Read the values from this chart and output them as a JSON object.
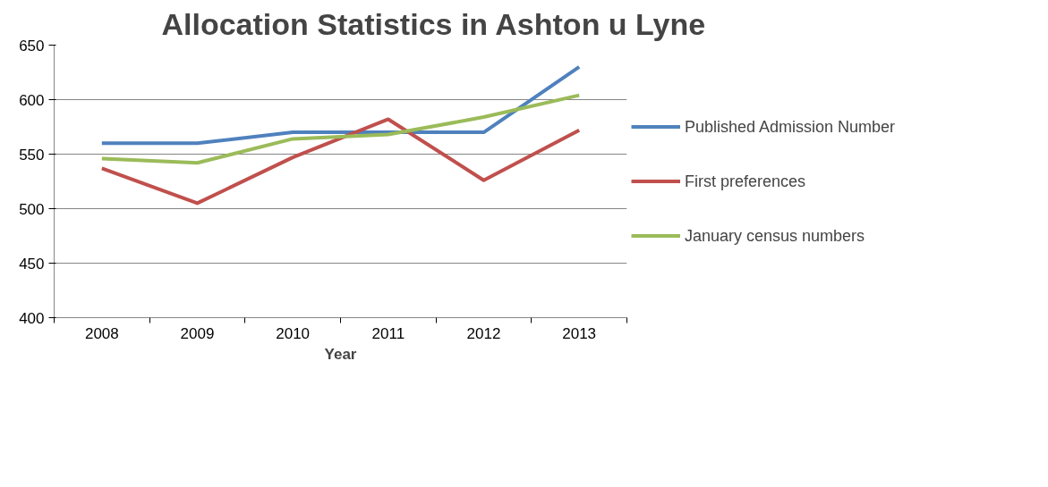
{
  "chart_data": {
    "type": "line",
    "title": "Allocation Statistics in Ashton u Lyne",
    "xlabel": "Year",
    "categories": [
      "2008",
      "2009",
      "2010",
      "2011",
      "2012",
      "2013"
    ],
    "series": [
      {
        "name": "Published Admission Number",
        "color": "#4f81bd",
        "values": [
          560,
          560,
          570,
          570,
          570,
          630
        ]
      },
      {
        "name": "First preferences",
        "color": "#c0504d",
        "values": [
          537,
          505,
          547,
          582,
          526,
          572
        ]
      },
      {
        "name": "January census numbers",
        "color": "#9bbb59",
        "values": [
          546,
          542,
          564,
          568,
          584,
          604
        ]
      }
    ],
    "ylim": [
      400,
      650
    ],
    "yticks": [
      400,
      450,
      500,
      550,
      600,
      650
    ],
    "grid": "y",
    "legend": "right",
    "marker": "none",
    "line_style": "solid"
  }
}
